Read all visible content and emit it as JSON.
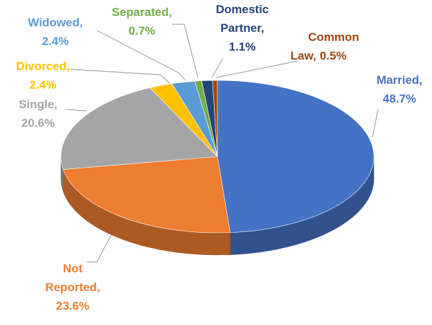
{
  "chart_data": {
    "type": "pie3d",
    "categories": [
      "Married,",
      "Not Reported,",
      "Single,",
      "Divorced,",
      "Widowed,",
      "Separated,",
      "Domestic Partner,",
      "Common Law,"
    ],
    "values": [
      48.7,
      23.6,
      20.6,
      2.4,
      2.4,
      0.7,
      1.1,
      0.5
    ],
    "value_labels": [
      "48.7%",
      "23.6%",
      "20.6%",
      "2.4%",
      "2.4%",
      "0.7%",
      "1.1%",
      "0.5%"
    ],
    "colors": [
      "#4472c4",
      "#ed7d31",
      "#a5a5a5",
      "#ffc000",
      "#5b9bd5",
      "#70ad47",
      "#264478",
      "#9e480e"
    ]
  }
}
